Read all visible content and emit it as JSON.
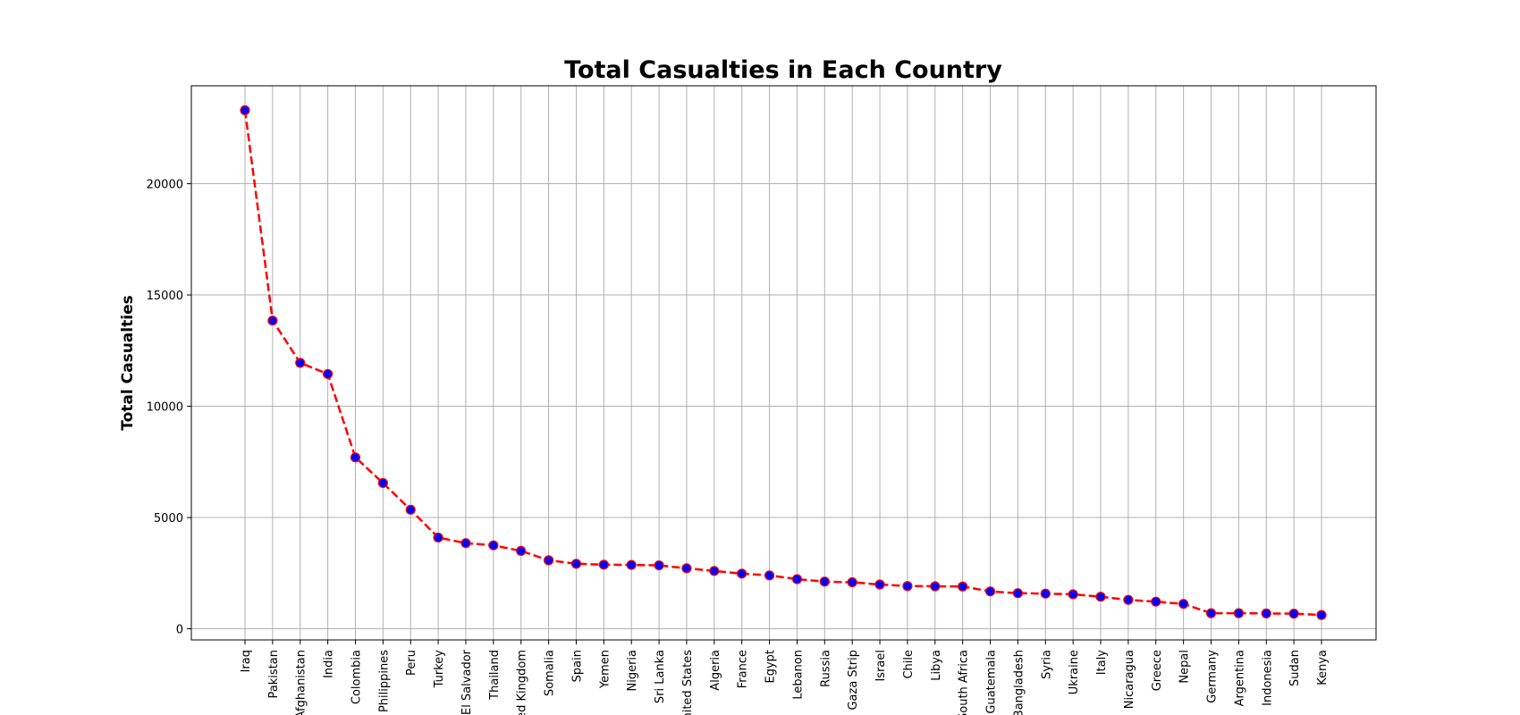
{
  "chart_data": {
    "type": "line",
    "title": "Total Casualties in Each Country",
    "xlabel": "",
    "ylabel": "Total Casualties",
    "ylim": [
      -500,
      24400
    ],
    "yticks": [
      0,
      5000,
      10000,
      15000,
      20000
    ],
    "grid": true,
    "line_style": "dashed",
    "line_color": "#ff0000",
    "marker_fill": "#0000ff",
    "marker_edge": "#ff0000",
    "categories": [
      "Iraq",
      "Pakistan",
      "Afghanistan",
      "India",
      "Colombia",
      "Philippines",
      "Peru",
      "Turkey",
      "El Salvador",
      "Thailand",
      "United Kingdom",
      "Somalia",
      "Spain",
      "Yemen",
      "Nigeria",
      "Sri Lanka",
      "United States",
      "Algeria",
      "France",
      "Egypt",
      "Lebanon",
      "Russia",
      "Gaza Strip",
      "Israel",
      "Chile",
      "Libya",
      "South Africa",
      "Guatemala",
      "Bangladesh",
      "Syria",
      "Ukraine",
      "Italy",
      "Nicaragua",
      "Greece",
      "Nepal",
      "Germany",
      "Argentina",
      "Indonesia",
      "Sudan",
      "Kenya"
    ],
    "values": [
      23300,
      13850,
      11950,
      11450,
      7700,
      6550,
      5350,
      4100,
      3850,
      3750,
      3500,
      3080,
      2920,
      2880,
      2870,
      2850,
      2720,
      2600,
      2480,
      2400,
      2230,
      2120,
      2090,
      1990,
      1920,
      1910,
      1900,
      1680,
      1600,
      1580,
      1550,
      1440,
      1300,
      1220,
      1120,
      700,
      700,
      690,
      680,
      620
    ]
  }
}
